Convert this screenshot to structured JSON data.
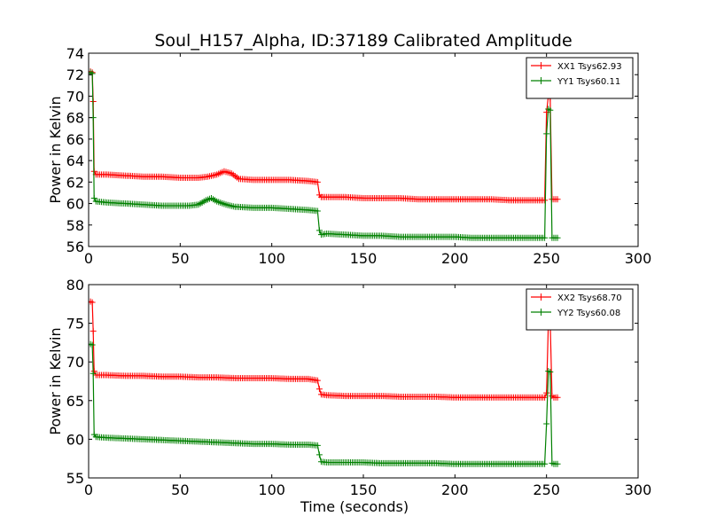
{
  "title": "Soul_H157_Alpha, ID:37189 Calibrated Amplitude",
  "chart_data": [
    {
      "type": "line",
      "ylabel": "Power in Kelvin",
      "xlabel": "",
      "xlim": [
        0,
        300
      ],
      "ylim": [
        56,
        74
      ],
      "xticks": [
        0,
        50,
        100,
        150,
        200,
        250,
        300
      ],
      "yticks": [
        56,
        58,
        60,
        62,
        64,
        66,
        68,
        70,
        72,
        74
      ],
      "legend_position": "top-right",
      "series": [
        {
          "name": "XX1 Tsys62.93",
          "color": "#ff0000",
          "marker": "+",
          "x": [
            1,
            2,
            2.5,
            3,
            4,
            10,
            20,
            30,
            40,
            50,
            60,
            65,
            70,
            74,
            78,
            82,
            90,
            100,
            110,
            120,
            125,
            126,
            127,
            130,
            140,
            150,
            160,
            170,
            180,
            190,
            200,
            210,
            220,
            230,
            240,
            249,
            250,
            251,
            252,
            253,
            254,
            256
          ],
          "y": [
            72.3,
            72.2,
            69.5,
            63.0,
            62.7,
            62.7,
            62.6,
            62.5,
            62.5,
            62.4,
            62.4,
            62.5,
            62.7,
            63.0,
            62.8,
            62.3,
            62.2,
            62.2,
            62.2,
            62.1,
            62.0,
            60.8,
            60.6,
            60.6,
            60.6,
            60.5,
            60.5,
            60.5,
            60.4,
            60.4,
            60.4,
            60.4,
            60.4,
            60.3,
            60.3,
            60.3,
            68.5,
            70.0,
            69.8,
            60.4,
            60.4,
            60.4
          ]
        },
        {
          "name": "YY1 Tsys60.11",
          "color": "#008000",
          "marker": "+",
          "x": [
            1,
            2,
            2.5,
            3,
            4,
            10,
            20,
            30,
            40,
            50,
            55,
            60,
            64,
            67,
            70,
            75,
            80,
            90,
            100,
            110,
            120,
            125,
            126,
            127,
            130,
            140,
            150,
            160,
            170,
            180,
            190,
            200,
            210,
            220,
            230,
            240,
            249,
            250,
            251,
            252,
            253,
            254,
            256
          ],
          "y": [
            72.2,
            72.1,
            68.0,
            60.5,
            60.2,
            60.1,
            60.0,
            59.9,
            59.8,
            59.8,
            59.8,
            59.9,
            60.3,
            60.5,
            60.2,
            59.9,
            59.7,
            59.6,
            59.6,
            59.5,
            59.4,
            59.3,
            57.5,
            57.1,
            57.2,
            57.1,
            57.0,
            57.0,
            56.9,
            56.9,
            56.9,
            56.9,
            56.8,
            56.8,
            56.8,
            56.8,
            56.8,
            66.5,
            68.8,
            68.7,
            56.8,
            56.8,
            56.8
          ]
        }
      ]
    },
    {
      "type": "line",
      "ylabel": "Power in Kelvin",
      "xlabel": "Time (seconds)",
      "xlim": [
        0,
        300
      ],
      "ylim": [
        55,
        80
      ],
      "xticks": [
        0,
        50,
        100,
        150,
        200,
        250,
        300
      ],
      "yticks": [
        55,
        60,
        65,
        70,
        75,
        80
      ],
      "legend_position": "top-right",
      "series": [
        {
          "name": "XX2 Tsys68.70",
          "color": "#ff0000",
          "marker": "+",
          "x": [
            1,
            2,
            2.5,
            3,
            4,
            10,
            20,
            30,
            40,
            50,
            60,
            70,
            80,
            90,
            100,
            110,
            120,
            125,
            126,
            127,
            130,
            140,
            150,
            160,
            170,
            180,
            190,
            200,
            210,
            220,
            230,
            240,
            249,
            250,
            251,
            252,
            253,
            254,
            256
          ],
          "y": [
            77.8,
            77.7,
            74.0,
            68.8,
            68.3,
            68.3,
            68.2,
            68.2,
            68.1,
            68.1,
            68.0,
            68.0,
            67.9,
            67.9,
            67.9,
            67.8,
            67.8,
            67.6,
            66.5,
            65.8,
            65.7,
            65.6,
            65.6,
            65.6,
            65.5,
            65.5,
            65.5,
            65.4,
            65.4,
            65.4,
            65.4,
            65.4,
            65.4,
            66.0,
            75.0,
            75.2,
            65.6,
            65.4,
            65.4
          ]
        },
        {
          "name": "YY2 Tsys60.08",
          "color": "#008000",
          "marker": "+",
          "x": [
            1,
            2,
            2.5,
            3,
            4,
            10,
            20,
            30,
            40,
            50,
            60,
            70,
            80,
            90,
            100,
            110,
            120,
            125,
            126,
            127,
            130,
            140,
            150,
            160,
            170,
            180,
            190,
            200,
            210,
            220,
            230,
            240,
            249,
            250,
            251,
            252,
            253,
            254,
            256
          ],
          "y": [
            72.3,
            72.2,
            68.5,
            60.6,
            60.3,
            60.2,
            60.1,
            60.0,
            59.9,
            59.8,
            59.7,
            59.6,
            59.5,
            59.4,
            59.4,
            59.3,
            59.3,
            59.2,
            58.0,
            57.1,
            57.0,
            57.0,
            57.0,
            56.9,
            56.9,
            56.9,
            56.9,
            56.8,
            56.8,
            56.8,
            56.8,
            56.8,
            56.8,
            62.0,
            68.8,
            68.7,
            56.9,
            56.8,
            56.8
          ]
        }
      ]
    }
  ]
}
